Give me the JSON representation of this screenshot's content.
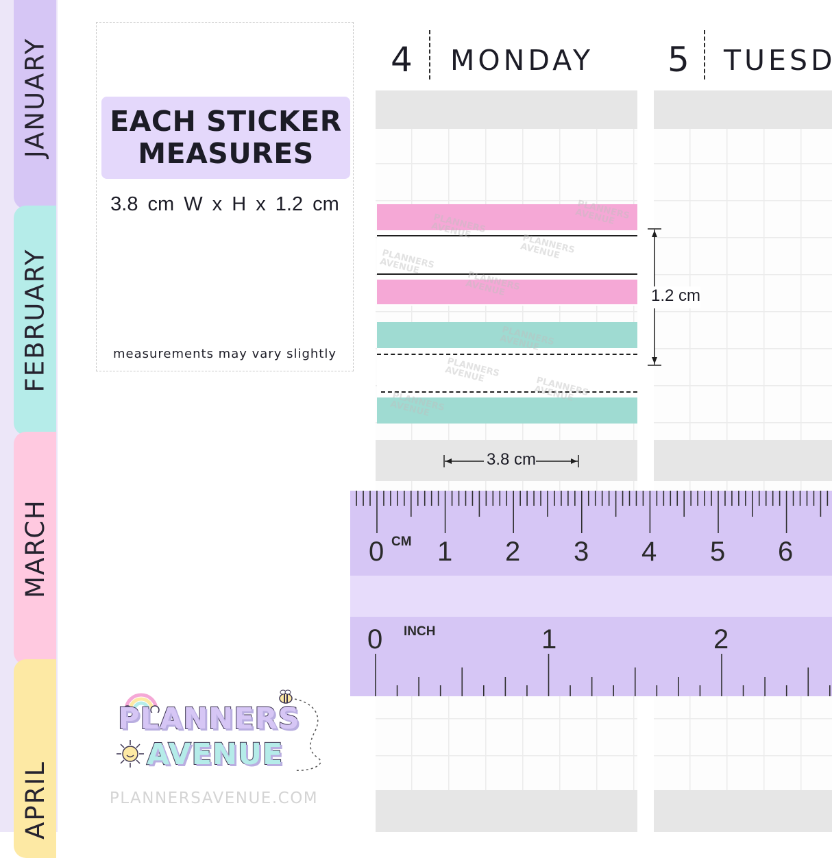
{
  "tabs": [
    {
      "label": "JANUARY",
      "color": "#d6c6f5"
    },
    {
      "label": "FEBRUARY",
      "color": "#b5ece9"
    },
    {
      "label": "MARCH",
      "color": "#ffc9e0"
    },
    {
      "label": "APRIL",
      "color": "#fde9a4"
    }
  ],
  "info_card": {
    "heading_line1": "EACH STICKER",
    "heading_line2": "MEASURES",
    "dimensions": "3.8 cm W  x  H  x 1.2 cm",
    "note": "measurements may vary slightly"
  },
  "days": [
    {
      "number": "4",
      "name": "MONDAY"
    },
    {
      "number": "5",
      "name": "TUESD"
    }
  ],
  "measurements": {
    "height_label": "1.2 cm",
    "width_label": "3.8 cm"
  },
  "stickers": {
    "watermark_text": "PLANNERS AVENUE",
    "pink_color": "#f5a8d6",
    "teal_color": "#9fdbd2"
  },
  "ruler": {
    "cm_label": "CM",
    "inch_label": "INCH",
    "cm_numbers": [
      "0",
      "1",
      "2",
      "3",
      "4",
      "5",
      "6"
    ],
    "inch_numbers": [
      "0",
      "1",
      "2"
    ],
    "color": "#d6c6f5"
  },
  "logo": {
    "line1": "PLANNERS",
    "line2": "AVENUE"
  },
  "website": "PLANNERSAVENUE.COM"
}
